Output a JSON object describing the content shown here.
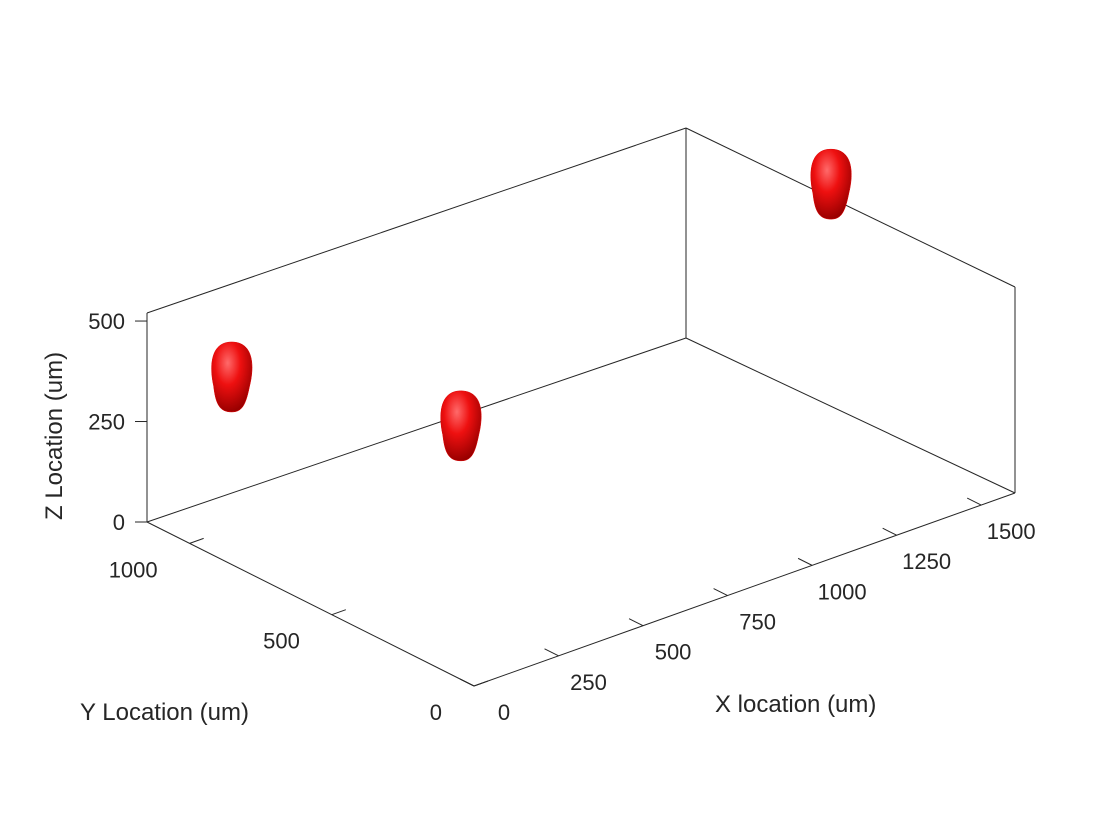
{
  "chart_data": {
    "type": "scatter",
    "title": "",
    "xlabel": "X location (um)",
    "ylabel": "Y Location (um)",
    "zlabel": "Z Location (um)",
    "xlim": [
      0,
      1600
    ],
    "ylim": [
      0,
      1150
    ],
    "zlim": [
      0,
      520
    ],
    "x_ticks": [
      0,
      250,
      500,
      750,
      1000,
      1250,
      1500
    ],
    "y_ticks": [
      0,
      500,
      1000
    ],
    "z_ticks": [
      0,
      250,
      500
    ],
    "grid": false,
    "box": true,
    "marker_color": "#e00000",
    "series": [
      {
        "points": [
          {
            "x": 40,
            "y": 900,
            "z": 440
          },
          {
            "x": 600,
            "y": 760,
            "z": 200
          },
          {
            "x": 1560,
            "y": 600,
            "z": 570
          }
        ]
      }
    ]
  }
}
